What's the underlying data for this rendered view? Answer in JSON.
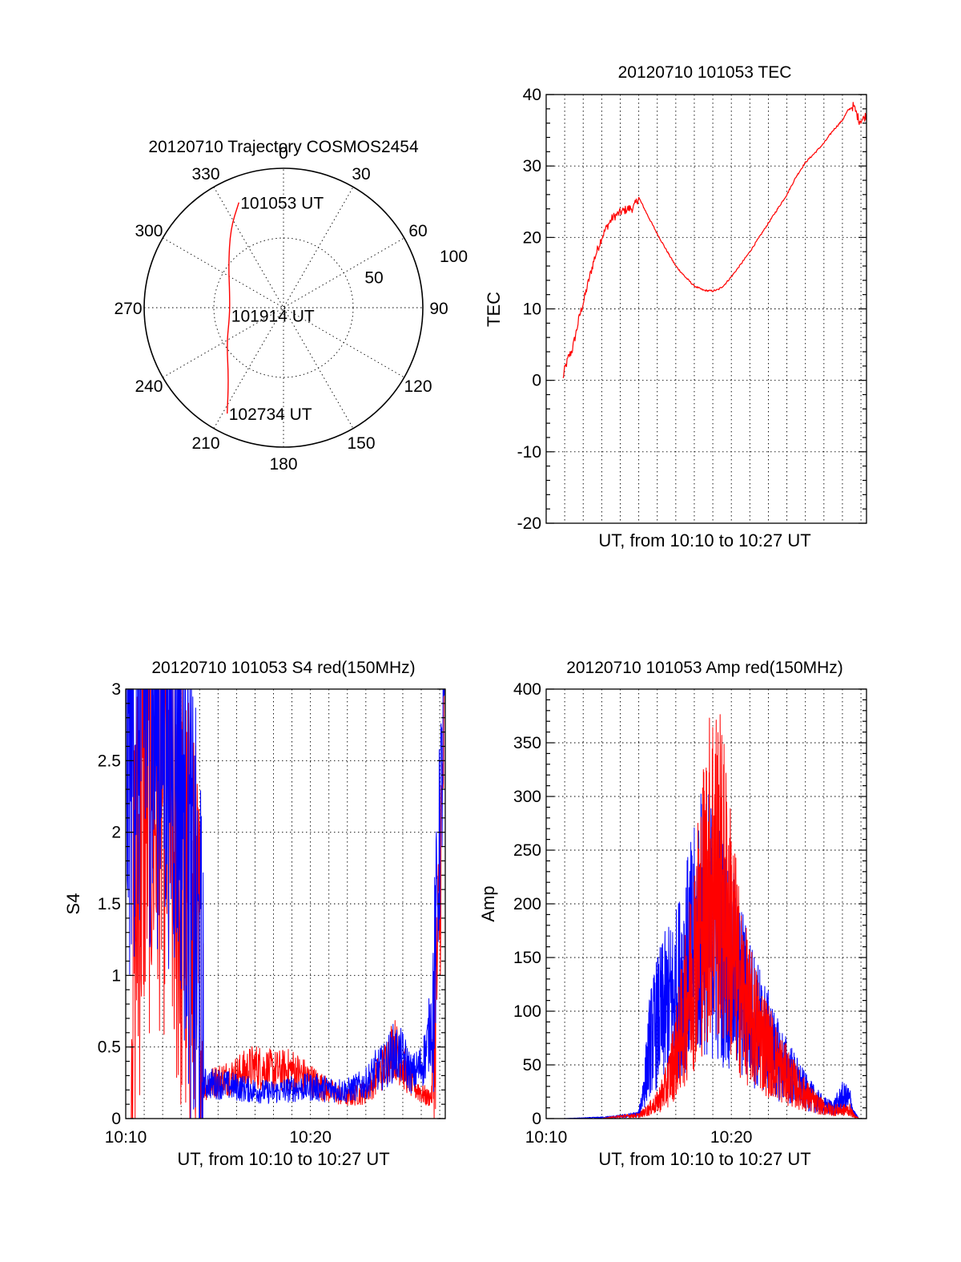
{
  "chart_data": [
    {
      "type": "polar",
      "title": "20120710 Trajectory COSMOS2454",
      "azimuth_labels": [
        "0",
        "30",
        "60",
        "90",
        "120",
        "150",
        "180",
        "210",
        "240",
        "270",
        "300",
        "330"
      ],
      "elevation_labels": [
        "50",
        "100"
      ],
      "elevation_ticks": [
        50,
        100
      ],
      "max_radius_value": 100,
      "grid": true,
      "series": [
        {
          "color": "#ff0000",
          "points": [
            {
              "az": 337,
              "r": 82
            },
            {
              "az": 326,
              "r": 68
            },
            {
              "az": 308,
              "r": 50
            },
            {
              "az": 285,
              "r": 40
            },
            {
              "az": 262,
              "r": 39
            },
            {
              "az": 238,
              "r": 48
            },
            {
              "az": 218,
              "r": 64
            },
            {
              "az": 208,
              "r": 86
            }
          ]
        }
      ],
      "annotations": [
        {
          "text": "101053 UT",
          "az": 337,
          "r": 82
        },
        {
          "text": "101914 UT",
          "az": 262,
          "r": 39
        },
        {
          "text": "102734 UT",
          "az": 208,
          "r": 86
        }
      ]
    },
    {
      "type": "line",
      "title": "20120710 101053 TEC",
      "xlabel": "UT, from 10:10 to 10:27 UT",
      "ylabel": "TEC",
      "xlim": [
        0,
        17.3
      ],
      "ylim": [
        -20,
        40
      ],
      "yticks": [
        -20,
        -10,
        0,
        10,
        20,
        30,
        40
      ],
      "xgrid_step": 1,
      "grid": true,
      "series": [
        {
          "color": "#ff0000",
          "x": [
            0.9,
            1.0,
            1.2,
            1.4,
            1.6,
            1.8,
            2.0,
            2.3,
            2.6,
            3.0,
            3.3,
            3.6,
            4.0,
            4.4,
            4.7,
            5.0,
            5.5,
            6.0,
            6.5,
            7.0,
            7.5,
            8.0,
            8.5,
            9.0,
            9.3,
            9.6,
            10.0,
            10.5,
            11.0,
            11.5,
            12.0,
            12.5,
            13.0,
            13.5,
            14.0,
            14.5,
            15.0,
            15.5,
            16.0,
            16.3,
            16.6,
            16.9,
            17.1,
            17.3
          ],
          "y": [
            0.2,
            1.5,
            3.2,
            4.2,
            6.5,
            9.0,
            10.8,
            14.0,
            17.0,
            20.0,
            21.6,
            22.8,
            23.5,
            24.0,
            24.1,
            25.6,
            23.0,
            20.5,
            18.2,
            16.0,
            14.5,
            13.2,
            12.6,
            12.5,
            12.7,
            13.3,
            14.5,
            16.2,
            18.0,
            20.0,
            22.0,
            24.0,
            26.0,
            28.5,
            30.5,
            31.8,
            33.2,
            35.0,
            36.4,
            37.8,
            38.4,
            36.4,
            36.5,
            37.2
          ]
        }
      ]
    },
    {
      "type": "line",
      "title": "20120710 101053 S4 red(150MHz)",
      "xlabel": "UT, from 10:10 to 10:27 UT",
      "ylabel": "S4",
      "xlim": [
        0,
        17.3
      ],
      "ylim": [
        0,
        3
      ],
      "yticks": [
        0,
        0.5,
        1,
        1.5,
        2,
        2.5,
        3
      ],
      "ytick_labels": [
        "0",
        "0.5",
        "1",
        "1.5",
        "2",
        "2.5",
        "3"
      ],
      "xticks": [
        0,
        10
      ],
      "xtick_labels": [
        "10:10",
        "10:20"
      ],
      "xgrid_step": 1,
      "grid": true,
      "series": [
        {
          "color": "#ff0000",
          "x": [
            0.3,
            1.0,
            2.0,
            3.0,
            3.7,
            4.0,
            4.2,
            5.0,
            6.0,
            7.0,
            8.0,
            9.0,
            10.0,
            11.0,
            12.0,
            13.0,
            14.0,
            14.5,
            15.0,
            15.5,
            16.0,
            16.3,
            16.6,
            17.0,
            17.3
          ],
          "y": [
            1.0,
            2.2,
            2.3,
            1.6,
            1.1,
            0.8,
            0.18,
            0.22,
            0.25,
            0.3,
            0.27,
            0.28,
            0.22,
            0.16,
            0.12,
            0.15,
            0.3,
            0.42,
            0.3,
            0.2,
            0.15,
            0.12,
            0.13,
            1.5,
            3.0
          ]
        },
        {
          "color": "#0000ff",
          "x": [
            0.0,
            0.5,
            1.0,
            2.0,
            3.0,
            3.7,
            4.0,
            4.2,
            5.0,
            6.0,
            7.0,
            8.0,
            9.0,
            10.0,
            11.0,
            12.0,
            13.0,
            13.5,
            14.0,
            14.5,
            15.0,
            15.5,
            16.0,
            16.3,
            16.6,
            17.0,
            17.3
          ],
          "y": [
            2.5,
            2.8,
            2.9,
            2.85,
            2.5,
            1.3,
            0.9,
            0.2,
            0.2,
            0.18,
            0.16,
            0.15,
            0.17,
            0.18,
            0.17,
            0.16,
            0.2,
            0.27,
            0.3,
            0.38,
            0.35,
            0.25,
            0.3,
            0.4,
            0.6,
            2.0,
            3.0
          ]
        }
      ]
    },
    {
      "type": "line",
      "title": "20120710 101053 Amp red(150MHz)",
      "xlabel": "UT, from 10:10 to 10:27 UT",
      "ylabel": "Amp",
      "xlim": [
        0,
        17.3
      ],
      "ylim": [
        0,
        400
      ],
      "yticks": [
        0,
        50,
        100,
        150,
        200,
        250,
        300,
        350,
        400
      ],
      "ytick_labels": [
        "0",
        "50",
        "100",
        "150",
        "200",
        "250",
        "300",
        "350",
        "400"
      ],
      "xticks": [
        0,
        10
      ],
      "xtick_labels": [
        "10:10",
        "10:20"
      ],
      "xgrid_step": 1,
      "grid": true,
      "series": [
        {
          "color": "#0000ff",
          "x": [
            0.9,
            3.0,
            4.0,
            5.0,
            5.3,
            5.6,
            6.0,
            6.5,
            7.0,
            7.5,
            8.0,
            8.5,
            9.0,
            9.5,
            10.0,
            10.5,
            11.0,
            11.5,
            12.0,
            12.5,
            13.0,
            13.5,
            14.0,
            14.5,
            15.0,
            15.5,
            16.0,
            16.4,
            16.6,
            16.9,
            17.3
          ],
          "y": [
            0,
            1,
            2,
            4,
            30,
            70,
            90,
            105,
            115,
            140,
            160,
            190,
            175,
            160,
            140,
            120,
            100,
            85,
            70,
            55,
            45,
            35,
            25,
            18,
            12,
            10,
            20,
            18,
            5,
            0,
            0
          ]
        },
        {
          "color": "#ff0000",
          "x": [
            0.9,
            3.0,
            4.0,
            5.0,
            5.5,
            6.0,
            6.5,
            7.0,
            7.5,
            8.0,
            8.5,
            9.0,
            9.5,
            10.0,
            10.5,
            11.0,
            11.5,
            12.0,
            12.5,
            13.0,
            13.5,
            14.0,
            14.5,
            15.0,
            15.5,
            16.0,
            16.4,
            16.6,
            16.9,
            17.3
          ],
          "y": [
            0,
            0,
            2,
            3,
            8,
            15,
            30,
            60,
            100,
            150,
            200,
            240,
            220,
            170,
            120,
            95,
            80,
            65,
            50,
            40,
            30,
            22,
            15,
            10,
            8,
            8,
            8,
            3,
            0,
            0
          ]
        }
      ]
    }
  ]
}
